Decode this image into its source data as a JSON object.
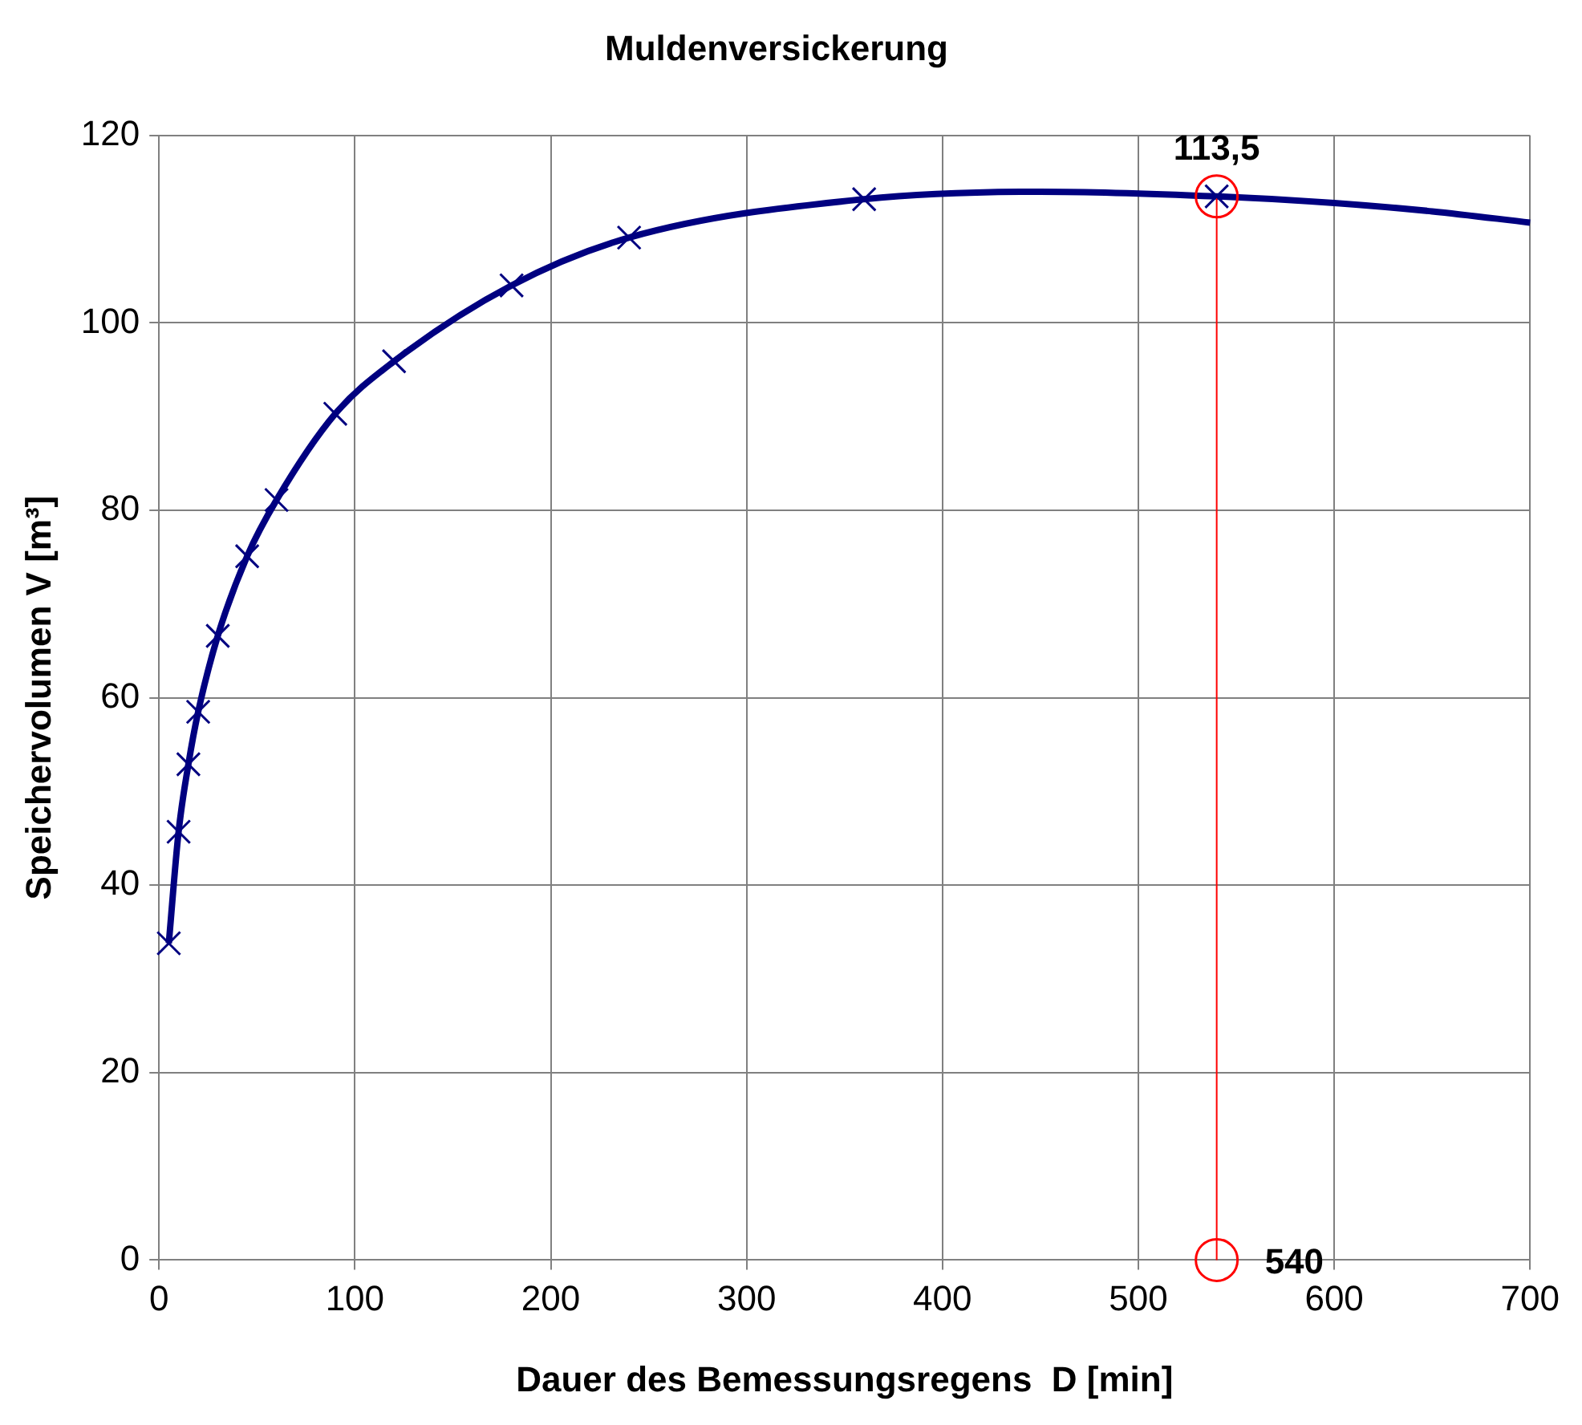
{
  "chart_data": {
    "type": "line",
    "title": "Muldenversickerung",
    "xlabel": "Dauer des Bemessungsregens  D [min]",
    "ylabel": "Speichervolumen V [m³]",
    "xlim": [
      0,
      700
    ],
    "xticks": [
      0,
      100,
      200,
      300,
      400,
      500,
      600,
      700
    ],
    "ylim": [
      0,
      120
    ],
    "yticks": [
      0,
      20,
      40,
      60,
      80,
      100,
      120
    ],
    "grid": true,
    "series": [
      {
        "color": "#000080",
        "marker": "none",
        "x": [
          5,
          10,
          15,
          20,
          30,
          45,
          60,
          90,
          120,
          180,
          240,
          360,
          450,
          540,
          600,
          650,
          700
        ],
        "values": [
          33.8,
          45.7,
          52.9,
          58.5,
          66.6,
          75.1,
          81.1,
          90.3,
          95.9,
          104.0,
          109.1,
          113.2,
          114.0,
          113.5,
          112.8,
          111.9,
          110.7
        ]
      },
      {
        "type": "scatter",
        "color": "#000080",
        "marker": "cross",
        "x": [
          5,
          10,
          15,
          20,
          30,
          45,
          60,
          90,
          120,
          180,
          240,
          360,
          540
        ],
        "values": [
          33.8,
          45.7,
          52.9,
          58.5,
          66.6,
          75.1,
          81.1,
          90.3,
          95.9,
          104.0,
          109.1,
          113.2,
          113.5
        ]
      },
      {
        "color": "#ff0000",
        "marker": "circle",
        "x": [
          540,
          540
        ],
        "values": [
          0,
          113.5
        ]
      }
    ],
    "annotations": [
      {
        "text": "113,5",
        "x": 540,
        "y": 113.5
      },
      {
        "text": "540",
        "x": 540,
        "y": 0
      }
    ]
  }
}
